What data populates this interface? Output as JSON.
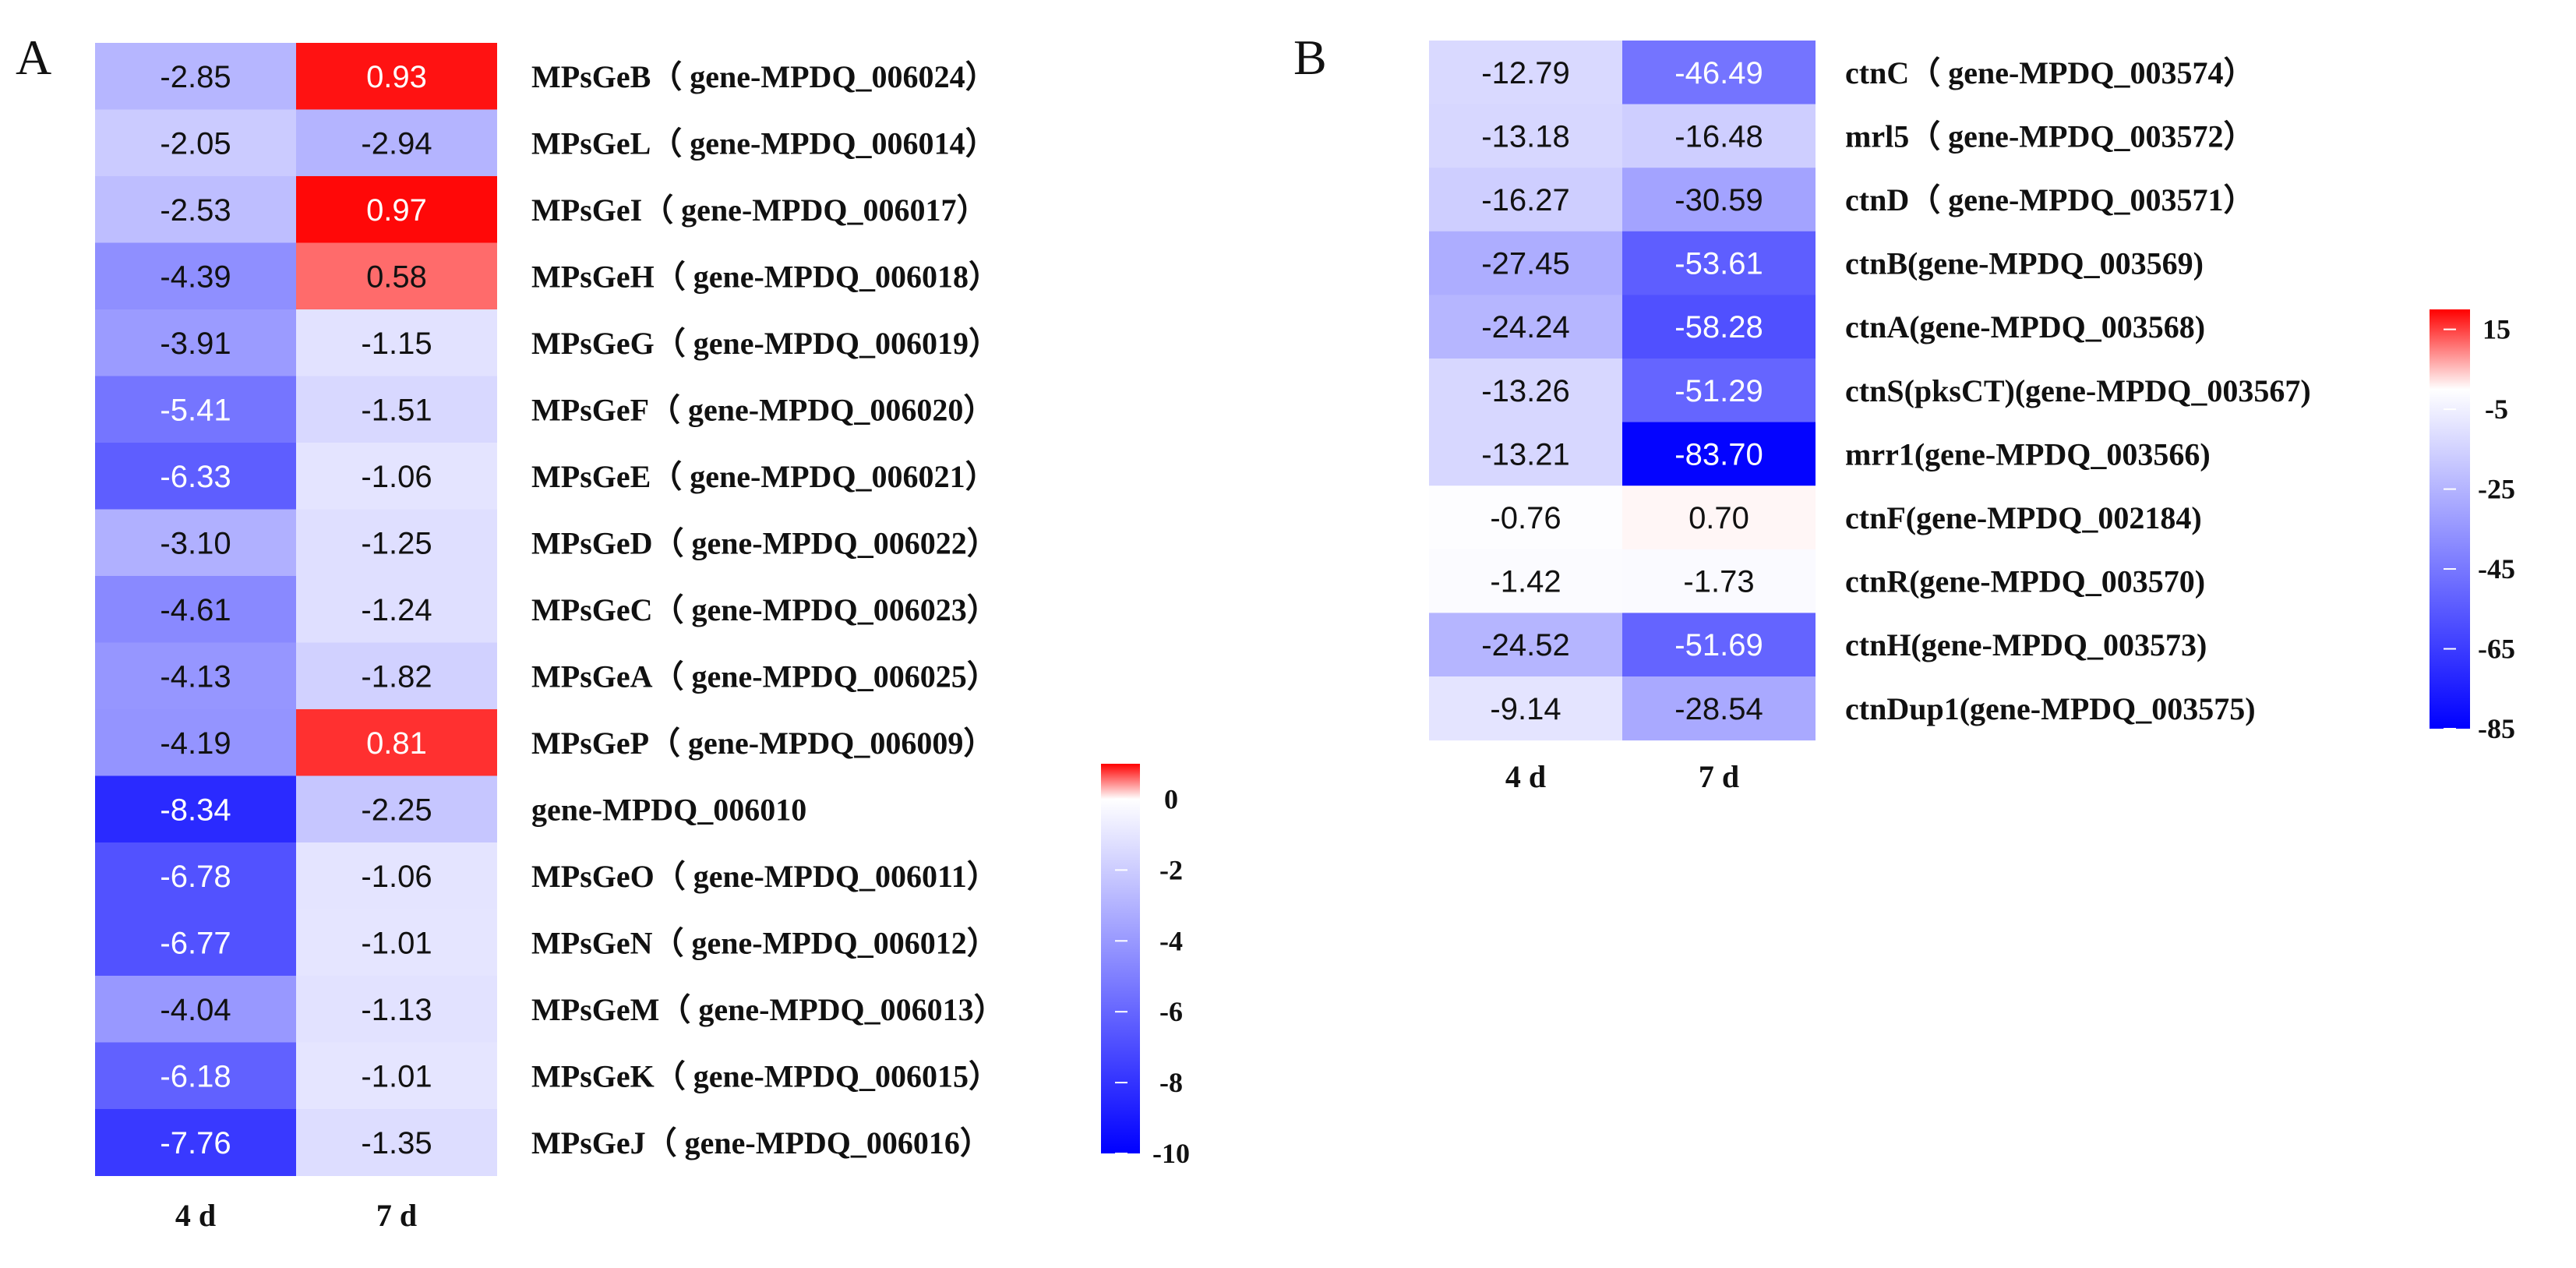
{
  "chart_data": [
    {
      "type": "heatmap",
      "panel_label": "A",
      "columns": [
        "4 d",
        "7 d"
      ],
      "rows": [
        "MPsGeB（ gene-MPDQ_006024）",
        "MPsGeL（ gene-MPDQ_006014）",
        "MPsGeI（ gene-MPDQ_006017）",
        "MPsGeH（ gene-MPDQ_006018）",
        "MPsGeG（ gene-MPDQ_006019）",
        "MPsGeF（ gene-MPDQ_006020）",
        "MPsGeE（ gene-MPDQ_006021）",
        "MPsGeD（ gene-MPDQ_006022）",
        "MPsGeC（ gene-MPDQ_006023）",
        "MPsGeA（ gene-MPDQ_006025）",
        "MPsGeP（ gene-MPDQ_006009）",
        "gene-MPDQ_006010",
        "MPsGeO（ gene-MPDQ_006011）",
        "MPsGeN（ gene-MPDQ_006012）",
        "MPsGeM（ gene-MPDQ_006013）",
        "MPsGeK（ gene-MPDQ_006015）",
        "MPsGeJ（ gene-MPDQ_006016）"
      ],
      "values": [
        [
          "-2.85",
          "0.93"
        ],
        [
          "-2.05",
          "-2.94"
        ],
        [
          "-2.53",
          "0.97"
        ],
        [
          "-4.39",
          "0.58"
        ],
        [
          "-3.91",
          "-1.15"
        ],
        [
          "-5.41",
          "-1.51"
        ],
        [
          "-6.33",
          "-1.06"
        ],
        [
          "-3.10",
          "-1.25"
        ],
        [
          "-4.61",
          "-1.24"
        ],
        [
          "-4.13",
          "-1.82"
        ],
        [
          "-4.19",
          "0.81"
        ],
        [
          "-8.34",
          "-2.25"
        ],
        [
          "-6.78",
          "-1.06"
        ],
        [
          "-6.77",
          "-1.01"
        ],
        [
          "-4.04",
          "-1.13"
        ],
        [
          "-6.18",
          "-1.01"
        ],
        [
          "-7.76",
          "-1.35"
        ]
      ],
      "scale": {
        "min": -10,
        "max": 1,
        "mid": 0,
        "ticks": [
          "0",
          "-2",
          "-4",
          "-6",
          "-8",
          "-10"
        ],
        "tick_values": [
          0,
          -2,
          -4,
          -6,
          -8,
          -10
        ]
      },
      "colors": {
        "low": "#0000ff",
        "mid": "#ffffff",
        "high": "#ff0000"
      }
    },
    {
      "type": "heatmap",
      "panel_label": "B",
      "columns": [
        "4 d",
        "7 d"
      ],
      "rows": [
        "ctnC（ gene-MPDQ_003574）",
        "mrl5（ gene-MPDQ_003572）",
        "ctnD（ gene-MPDQ_003571）",
        "ctnB(gene-MPDQ_003569)",
        "ctnA(gene-MPDQ_003568)",
        "ctnS(pksCT)(gene-MPDQ_003567)",
        "mrr1(gene-MPDQ_003566)",
        "ctnF(gene-MPDQ_002184)",
        "ctnR(gene-MPDQ_003570)",
        "ctnH(gene-MPDQ_003573)",
        "ctnDup1(gene-MPDQ_003575)"
      ],
      "values": [
        [
          "-12.79",
          "-46.49"
        ],
        [
          "-13.18",
          "-16.48"
        ],
        [
          "-16.27",
          "-30.59"
        ],
        [
          "-27.45",
          "-53.61"
        ],
        [
          "-24.24",
          "-58.28"
        ],
        [
          "-13.26",
          "-51.29"
        ],
        [
          "-13.21",
          "-83.70"
        ],
        [
          "-0.76",
          "0.70"
        ],
        [
          "-1.42",
          "-1.73"
        ],
        [
          "-24.52",
          "-51.69"
        ],
        [
          "-9.14",
          "-28.54"
        ]
      ],
      "scale": {
        "min": -85,
        "max": 20,
        "mid": 0,
        "ticks": [
          "15",
          "-5",
          "-25",
          "-45",
          "-65",
          "-85"
        ],
        "tick_values": [
          15,
          -5,
          -25,
          -45,
          -65,
          -85
        ]
      },
      "colors": {
        "low": "#0000ff",
        "mid": "#ffffff",
        "high": "#ff0000"
      }
    }
  ]
}
